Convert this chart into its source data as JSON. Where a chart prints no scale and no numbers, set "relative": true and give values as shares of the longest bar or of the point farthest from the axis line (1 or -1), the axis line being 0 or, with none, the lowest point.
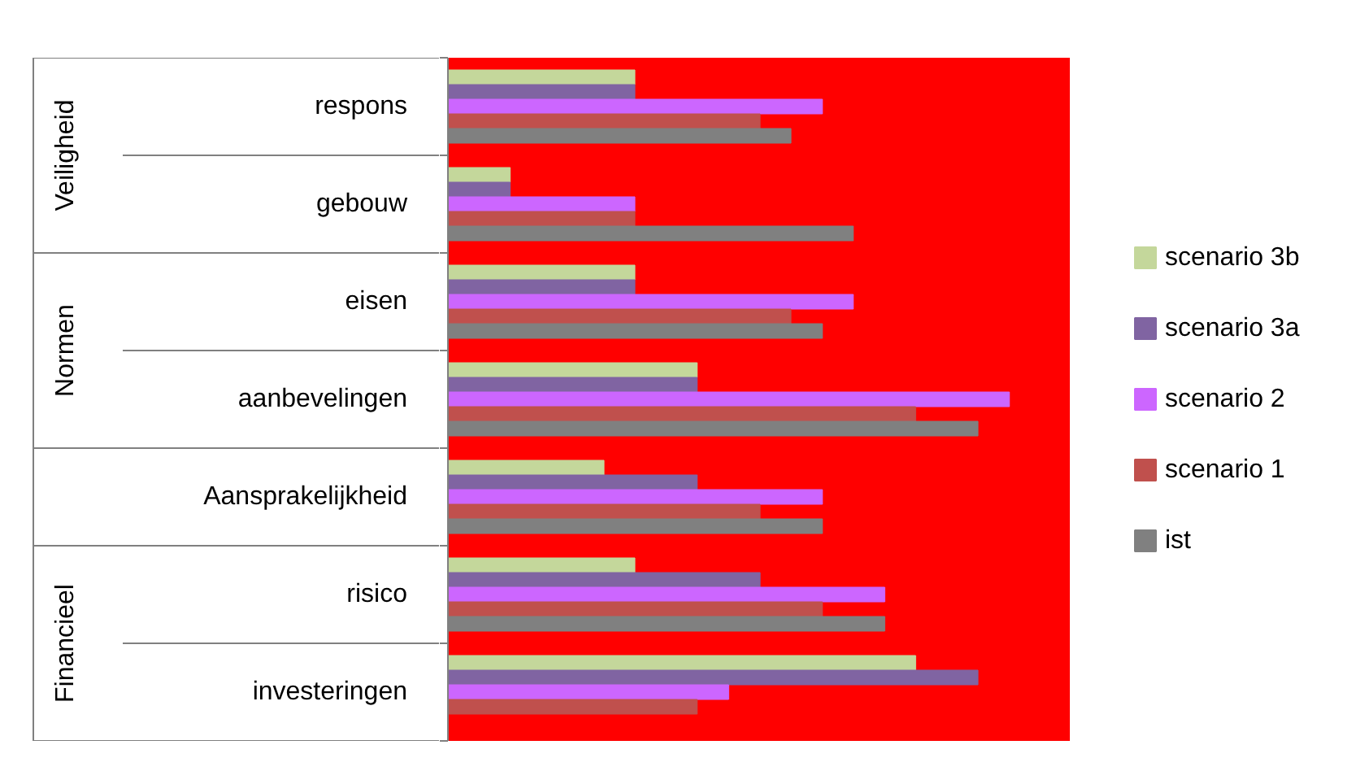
{
  "chart_data": {
    "type": "bar",
    "orientation": "horizontal",
    "relative": true,
    "grid": false,
    "legend": "right",
    "categories": [
      "respons",
      "gebouw",
      "eisen",
      "aanbevelingen",
      "Aansprakelijkheid",
      "risico",
      "investeringen"
    ],
    "annotations": [
      "Veiligheid",
      "Normen",
      "Financieel"
    ],
    "series": [
      {
        "name": "scenario 3b",
        "color": "#c4d79b",
        "values": [
          0.333,
          0.111,
          0.333,
          0.444,
          0.278,
          0.333,
          0.833
        ]
      },
      {
        "name": "scenario 3a",
        "color": "#8064a2",
        "values": [
          0.333,
          0.111,
          0.333,
          0.444,
          0.444,
          0.556,
          0.944
        ]
      },
      {
        "name": "scenario 2",
        "color": "#cc66ff",
        "values": [
          0.667,
          0.333,
          0.722,
          1,
          0.667,
          0.778,
          0.5
        ]
      },
      {
        "name": "scenario 1",
        "color": "#c0504d",
        "values": [
          0.556,
          0.333,
          0.611,
          0.833,
          0.556,
          0.667,
          0.444
        ]
      },
      {
        "name": "ist",
        "color": "#808080",
        "values": [
          0.611,
          0.722,
          0.667,
          0.944,
          0.667,
          0.778,
          0
        ]
      }
    ]
  }
}
